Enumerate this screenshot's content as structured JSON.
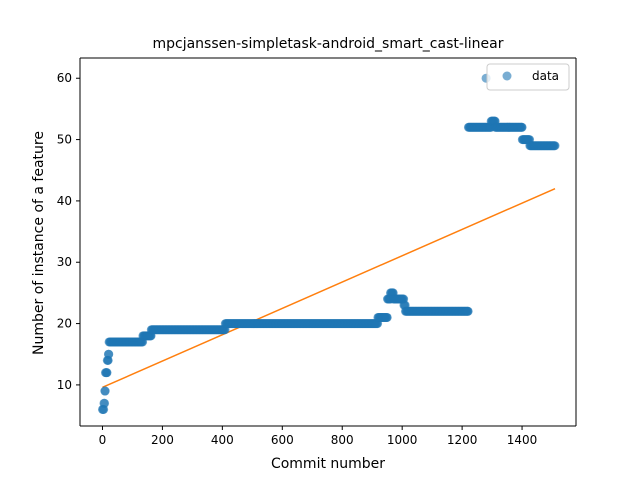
{
  "chart_data": {
    "type": "scatter",
    "title": "mpcjanssen-simpletask-android_smart_cast-linear",
    "xlabel": "Commit number",
    "ylabel": "Number of instance of a feature",
    "xlim": [
      -75,
      1580
    ],
    "ylim": [
      3.3,
      63.3
    ],
    "xticks": [
      0,
      200,
      400,
      600,
      800,
      1000,
      1200,
      1400
    ],
    "yticks": [
      10,
      20,
      30,
      40,
      50,
      60
    ],
    "grid": false,
    "legend_position": "top-right",
    "colors": {
      "scatter": "#1f77b4",
      "fit": "#ff7f0e"
    },
    "series": [
      {
        "name": "data",
        "kind": "scatter",
        "segments": [
          {
            "x_start": 0,
            "x_end": 4,
            "y": 6
          },
          {
            "x_start": 5,
            "x_end": 7,
            "y": 7
          },
          {
            "x_start": 8,
            "x_end": 9,
            "y": 9
          },
          {
            "x_start": 10,
            "x_end": 15,
            "y": 12
          },
          {
            "x_start": 16,
            "x_end": 19,
            "y": 14
          },
          {
            "x_start": 20,
            "x_end": 21,
            "y": 15
          },
          {
            "x_start": 22,
            "x_end": 134,
            "y": 17
          },
          {
            "x_start": 135,
            "x_end": 162,
            "y": 18
          },
          {
            "x_start": 163,
            "x_end": 409,
            "y": 19
          },
          {
            "x_start": 410,
            "x_end": 918,
            "y": 20
          },
          {
            "x_start": 919,
            "x_end": 950,
            "y": 21
          },
          {
            "x_start": 951,
            "x_end": 960,
            "y": 24
          },
          {
            "x_start": 961,
            "x_end": 970,
            "y": 25
          },
          {
            "x_start": 971,
            "x_end": 1005,
            "y": 24
          },
          {
            "x_start": 1006,
            "x_end": 1010,
            "y": 23
          },
          {
            "x_start": 1011,
            "x_end": 1220,
            "y": 22
          },
          {
            "x_start": 1221,
            "x_end": 1296,
            "y": 52
          },
          {
            "x_start": 1297,
            "x_end": 1310,
            "y": 53
          },
          {
            "x_start": 1311,
            "x_end": 1400,
            "y": 52
          },
          {
            "x_start": 1401,
            "x_end": 1425,
            "y": 50
          },
          {
            "x_start": 1426,
            "x_end": 1510,
            "y": 49
          }
        ],
        "points": [
          {
            "x": 1280,
            "y": 60
          }
        ]
      },
      {
        "kind": "line",
        "x": [
          0,
          1510
        ],
        "y": [
          9.6,
          42
        ]
      }
    ],
    "legend": [
      {
        "label": "data",
        "marker": "circle"
      }
    ]
  }
}
